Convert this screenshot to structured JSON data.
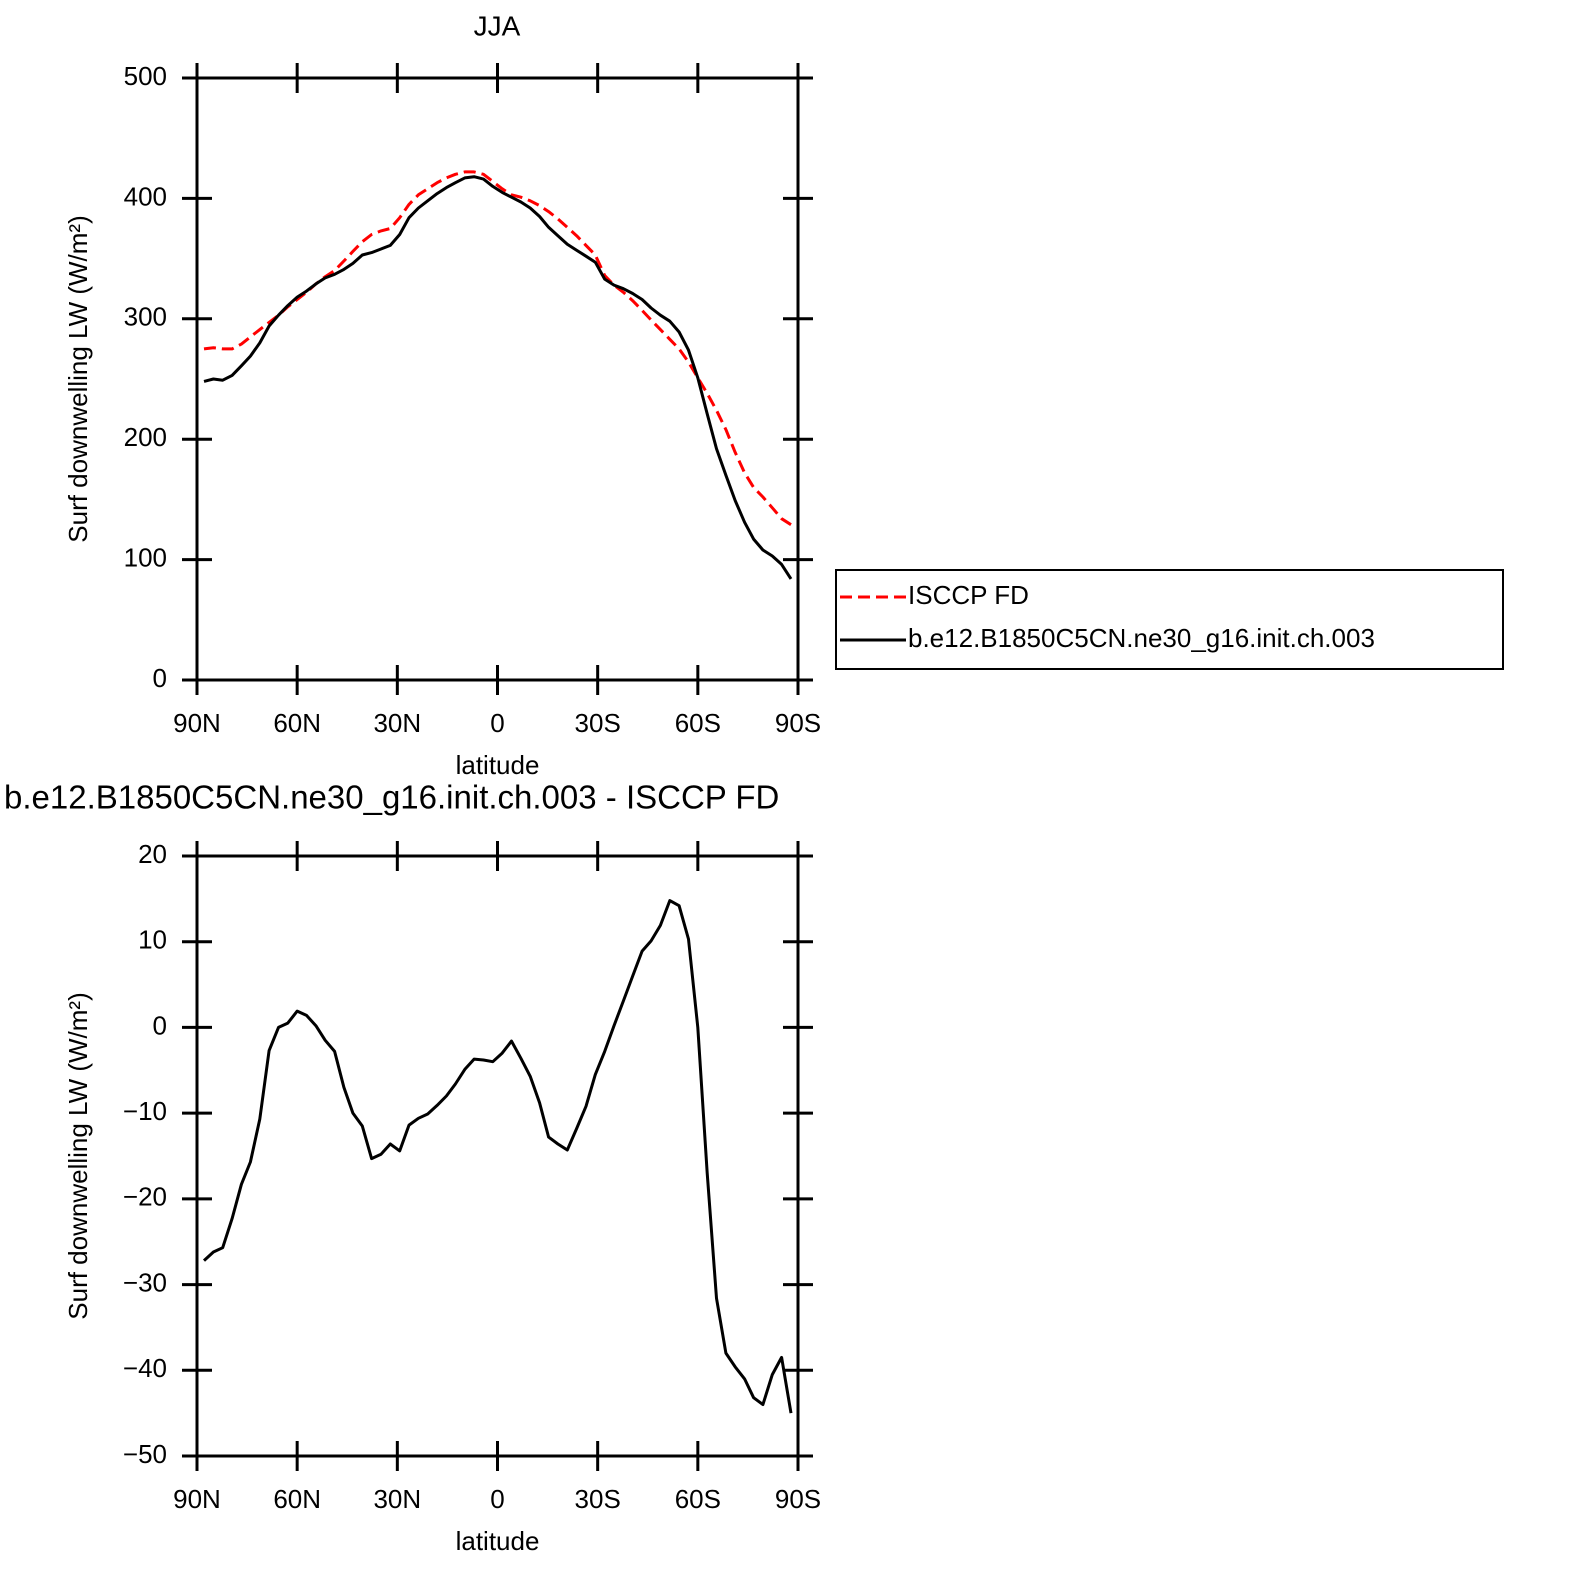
{
  "chart_data": [
    {
      "type": "line",
      "title": "JJA",
      "xlabel": "latitude",
      "ylabel": "Surf downwelling LW (W/m²)",
      "x": [
        87.9,
        85.1,
        82.3,
        79.5,
        76.7,
        74.0,
        71.2,
        68.4,
        65.6,
        62.8,
        60.0,
        57.2,
        54.4,
        51.6,
        48.8,
        46.0,
        43.3,
        40.5,
        37.7,
        34.9,
        32.1,
        29.3,
        26.5,
        23.7,
        20.9,
        18.1,
        15.3,
        12.6,
        9.8,
        7.0,
        4.2,
        1.4,
        -1.4,
        -4.2,
        -7.0,
        -9.8,
        -12.6,
        -15.3,
        -18.1,
        -20.9,
        -23.7,
        -26.5,
        -29.3,
        -32.1,
        -34.9,
        -37.7,
        -40.5,
        -43.3,
        -46.0,
        -48.8,
        -51.6,
        -54.4,
        -57.2,
        -60.0,
        -62.8,
        -65.6,
        -68.4,
        -71.2,
        -74.0,
        -76.7,
        -79.5,
        -82.3,
        -85.1,
        -87.9
      ],
      "series": [
        {
          "name": "ISCCP FD",
          "color": "#ff0000",
          "line_style": "dashed",
          "values": [
            275,
            276,
            275,
            275,
            279,
            285,
            291,
            297,
            303,
            310,
            316,
            322,
            329,
            335,
            340,
            348,
            356,
            364,
            370,
            373,
            375,
            384,
            395,
            403,
            408,
            413,
            417,
            420,
            422,
            422,
            420,
            414,
            408,
            403,
            401,
            398,
            394,
            389,
            383,
            376,
            369,
            361,
            353,
            336,
            328,
            322,
            315,
            307,
            299,
            291,
            283,
            275,
            264,
            251,
            238,
            224,
            208,
            189,
            172,
            160,
            152,
            143,
            134,
            129
          ]
        },
        {
          "name": "b.e12.B1850C5CN.ne30_g16.init.ch.003",
          "color": "#000000",
          "line_style": "solid",
          "values": [
            248,
            250,
            249,
            253,
            261,
            269,
            280,
            294,
            303,
            311,
            318,
            323,
            329,
            334,
            337,
            341,
            346,
            353,
            355,
            358,
            361,
            370,
            384,
            392,
            398,
            404,
            409,
            413,
            417,
            418,
            416,
            410,
            405,
            401,
            397,
            392,
            385,
            376,
            369,
            362,
            357,
            352,
            347,
            333,
            328,
            325,
            321,
            316,
            309,
            303,
            298,
            289,
            274,
            251,
            221,
            192,
            170,
            149,
            131,
            117,
            108,
            103,
            96,
            84
          ]
        }
      ],
      "xlim": [
        90,
        -90
      ],
      "xticks": [
        {
          "value": 90,
          "label": "90N"
        },
        {
          "value": 60,
          "label": "60N"
        },
        {
          "value": 30,
          "label": "30N"
        },
        0,
        {
          "value": -30,
          "label": "30S"
        },
        {
          "value": -60,
          "label": "60S"
        },
        {
          "value": -90,
          "label": "90S"
        }
      ],
      "ylim": [
        0,
        500
      ],
      "yticks": [
        0,
        100,
        200,
        300,
        400,
        500
      ],
      "legend": "right"
    },
    {
      "type": "line",
      "title": "b.e12.B1850C5CN.ne30_g16.init.ch.003 - ISCCP FD",
      "xlabel": "latitude",
      "ylabel": "Surf downwelling LW (W/m²)",
      "x": [
        87.9,
        85.1,
        82.3,
        79.5,
        76.7,
        74.0,
        71.2,
        68.4,
        65.6,
        62.8,
        60.0,
        57.2,
        54.4,
        51.6,
        48.8,
        46.0,
        43.3,
        40.5,
        37.7,
        34.9,
        32.1,
        29.3,
        26.5,
        23.7,
        20.9,
        18.1,
        15.3,
        12.6,
        9.8,
        7.0,
        4.2,
        1.4,
        -1.4,
        -4.2,
        -7.0,
        -9.8,
        -12.6,
        -15.3,
        -18.1,
        -20.9,
        -23.7,
        -26.5,
        -29.3,
        -32.1,
        -34.9,
        -37.7,
        -40.5,
        -43.3,
        -46.0,
        -48.8,
        -51.6,
        -54.4,
        -57.2,
        -60.0,
        -62.8,
        -65.6,
        -68.4,
        -71.2,
        -74.0,
        -76.7,
        -79.5,
        -82.3,
        -85.1,
        -87.9
      ],
      "color": "#000000",
      "values": [
        -27.2,
        -26.2,
        -25.7,
        -22.3,
        -18.3,
        -15.7,
        -10.7,
        -2.7,
        0,
        0.5,
        1.9,
        1.4,
        0.2,
        -1.5,
        -2.8,
        -7,
        -10,
        -11.5,
        -15.3,
        -14.8,
        -13.6,
        -14.4,
        -11.4,
        -10.6,
        -10.1,
        -9.1,
        -8,
        -6.6,
        -4.9,
        -3.7,
        -3.8,
        -4,
        -3,
        -1.6,
        -3.6,
        -5.7,
        -8.8,
        -12.8,
        -13.6,
        -14.3,
        -11.8,
        -9.2,
        -5.5,
        -2.8,
        0.2,
        3.1,
        6,
        8.9,
        10.1,
        11.9,
        14.8,
        14.2,
        10.3,
        0,
        -17,
        -31.6,
        -38,
        -39.6,
        -41,
        -43.2,
        -44,
        -40.5,
        -38.5,
        -45
      ],
      "xlim": [
        90,
        -90
      ],
      "xticks": [
        {
          "value": 90,
          "label": "90N"
        },
        {
          "value": 60,
          "label": "60N"
        },
        {
          "value": 30,
          "label": "30N"
        },
        0,
        {
          "value": -30,
          "label": "30S"
        },
        {
          "value": -60,
          "label": "60S"
        },
        {
          "value": -90,
          "label": "90S"
        }
      ],
      "ylim": [
        -50,
        20
      ],
      "yticks": [
        {
          "value": -50,
          "label": "−50"
        },
        {
          "value": -40,
          "label": "−40"
        },
        {
          "value": -30,
          "label": "−30"
        },
        {
          "value": -20,
          "label": "−20"
        },
        {
          "value": -10,
          "label": "−10"
        },
        0,
        10,
        20
      ]
    }
  ]
}
